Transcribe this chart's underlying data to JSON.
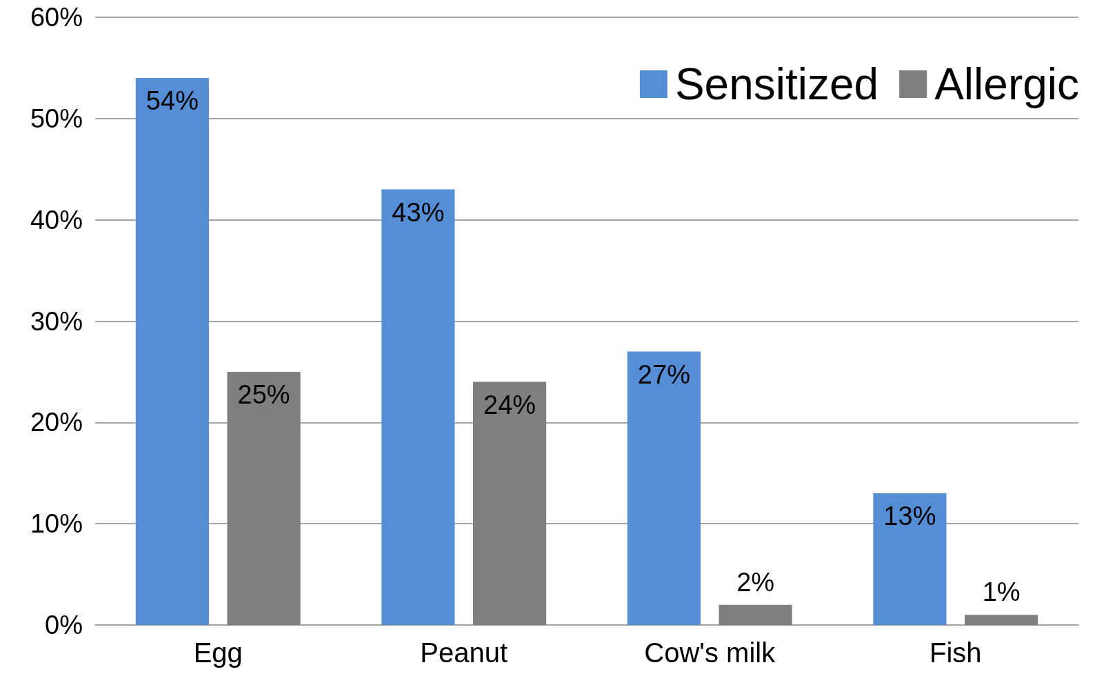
{
  "chart_data": {
    "type": "bar",
    "categories": [
      "Egg",
      "Peanut",
      "Cow's milk",
      "Fish"
    ],
    "series": [
      {
        "name": "Sensitized",
        "color": "#558ed5",
        "values": [
          54,
          43,
          27,
          13
        ],
        "value_labels": [
          "54%",
          "43%",
          "27%",
          "13%"
        ]
      },
      {
        "name": "Allergic",
        "color": "#7f7f7f",
        "values": [
          25,
          24,
          2,
          1
        ],
        "value_labels": [
          "25%",
          "24%",
          "2%",
          "1%"
        ]
      }
    ],
    "ylim": [
      0,
      60
    ],
    "yticks": [
      {
        "value": 0,
        "label": "0%"
      },
      {
        "value": 10,
        "label": "10%"
      },
      {
        "value": 20,
        "label": "20%"
      },
      {
        "value": 30,
        "label": "30%"
      },
      {
        "value": 40,
        "label": "40%"
      },
      {
        "value": 50,
        "label": "50%"
      },
      {
        "value": 60,
        "label": "60%"
      }
    ],
    "grid": "y",
    "legend": "top right"
  }
}
